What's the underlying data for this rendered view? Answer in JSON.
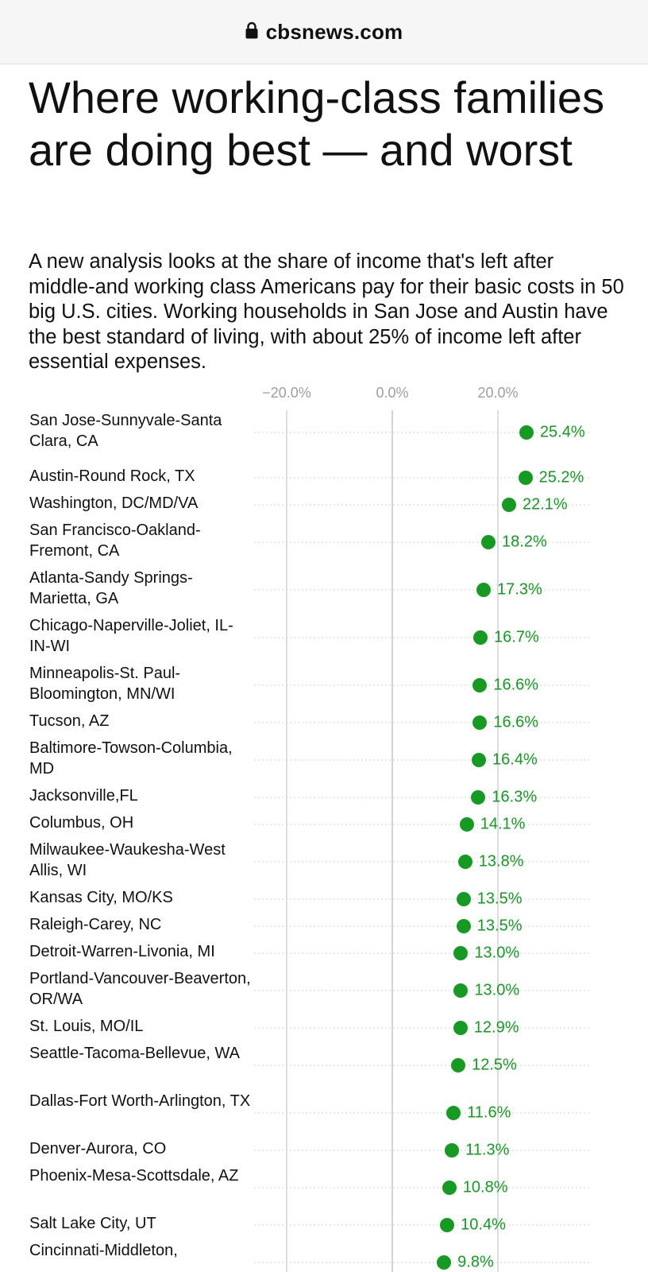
{
  "browser": {
    "host": "cbsnews.com",
    "lock_icon": "lock-icon"
  },
  "article": {
    "title": "Where working-class families are doing best — and worst",
    "description": "A new analysis looks at the share of income that's left after middle-and working class Americans pay for their basic costs in 50 big U.S. cities. Working households in San Jose and Austin have the best standard of living, with about 25% of income left after essential expenses."
  },
  "colors": {
    "dot": "#159a22",
    "gridline": "#d4d4d4",
    "dotted": "#d9d9d9",
    "tick_text": "#9e9e9e"
  },
  "chart_data": {
    "type": "scatter",
    "orientation": "horizontal-dot",
    "x_ticks": [
      {
        "value": -20,
        "label": "−20.0%"
      },
      {
        "value": 0,
        "label": "0.0%"
      },
      {
        "value": 20,
        "label": "20.0%"
      }
    ],
    "categories": [
      "San Jose-Sunnyvale-Santa Clara, CA",
      "Austin-Round Rock, TX",
      "Washington, DC/MD/VA",
      "San Francisco-Oakland-Fremont, CA",
      "Atlanta-Sandy Springs-Marietta, GA",
      "Chicago-Naperville-Joliet, IL-IN-WI",
      "Minneapolis-St. Paul-Bloomington, MN/WI",
      "Tucson, AZ",
      "Baltimore-Towson-Columbia, MD",
      "Jacksonville,FL",
      "Columbus, OH",
      "Milwaukee-Waukesha-West Allis, WI",
      "Kansas City, MO/KS",
      "Raleigh-Carey, NC",
      "Detroit-Warren-Livonia, MI",
      "Portland-Vancouver-Beaverton, OR/WA",
      "St. Louis, MO/IL",
      "Seattle-Tacoma-Bellevue, WA",
      "Dallas-Fort Worth-Arlington, TX",
      "Denver-Aurora, CO",
      "Phoenix-Mesa-Scottsdale, AZ",
      "Salt Lake City, UT",
      "Cincinnati-Middleton,"
    ],
    "values": [
      25.4,
      25.2,
      22.1,
      18.2,
      17.3,
      16.7,
      16.6,
      16.6,
      16.4,
      16.3,
      14.1,
      13.8,
      13.5,
      13.5,
      13.0,
      13.0,
      12.9,
      12.5,
      11.6,
      11.3,
      10.8,
      10.4,
      9.8
    ],
    "value_labels": [
      "25.4%",
      "25.2%",
      "22.1%",
      "18.2%",
      "17.3%",
      "16.7%",
      "16.6%",
      "16.6%",
      "16.4%",
      "16.3%",
      "14.1%",
      "13.8%",
      "13.5%",
      "13.5%",
      "13.0%",
      "13.0%",
      "12.9%",
      "12.5%",
      "11.6%",
      "11.3%",
      "10.8%",
      "10.4%",
      "9.8%"
    ],
    "grid": true
  }
}
